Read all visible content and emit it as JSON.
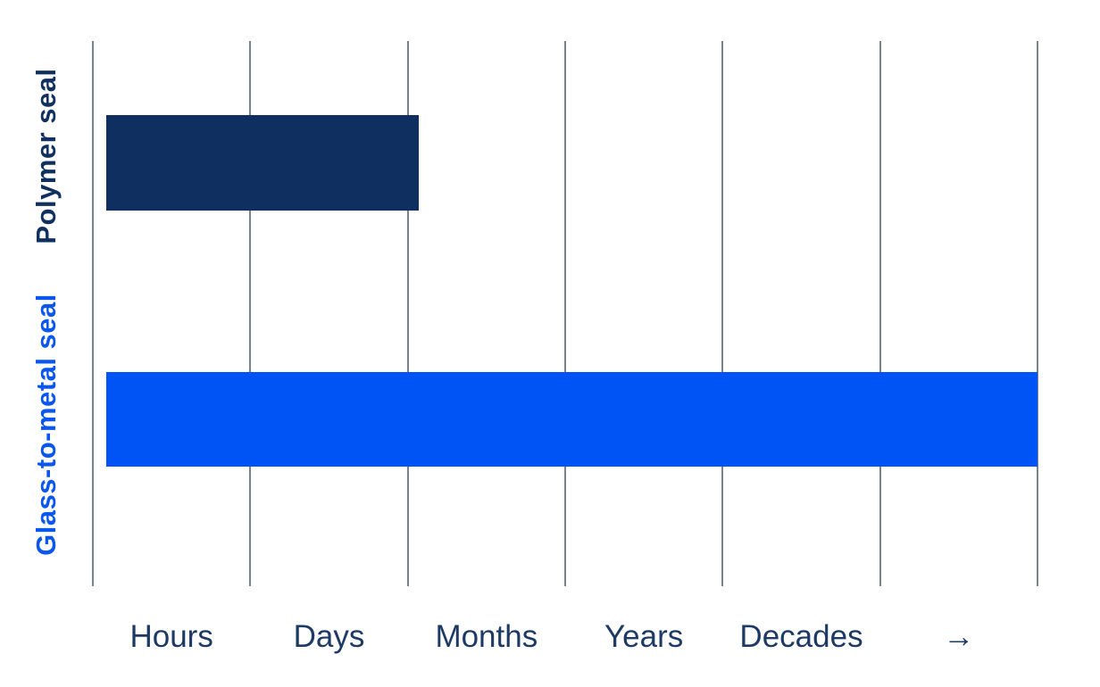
{
  "chart_data": {
    "type": "bar",
    "orientation": "horizontal",
    "title": "",
    "xlabel": "",
    "ylabel": "",
    "grid": true,
    "x_axis": {
      "tick_labels": [
        "Hours",
        "Days",
        "Months",
        "Years",
        "Decades",
        "→"
      ],
      "scale_segments": 6,
      "gridline_count": 7,
      "gridline_color": "#77828D",
      "tick_label_color": "#1D3A64"
    },
    "y_axis": {
      "categories": [
        "Polymer seal",
        "Glass-to-metal seal"
      ]
    },
    "bar_start_segment": 0.085,
    "series": [
      {
        "name": "Polymer seal",
        "value_segments": 2.07,
        "color": "#0E2F5F",
        "label_color": "#10305F"
      },
      {
        "name": "Glass-to-metal seal",
        "value_segments": 6.0,
        "color": "#0054F6",
        "label_color": "#0B57EE"
      }
    ],
    "background_color": "#FFFFFF"
  }
}
